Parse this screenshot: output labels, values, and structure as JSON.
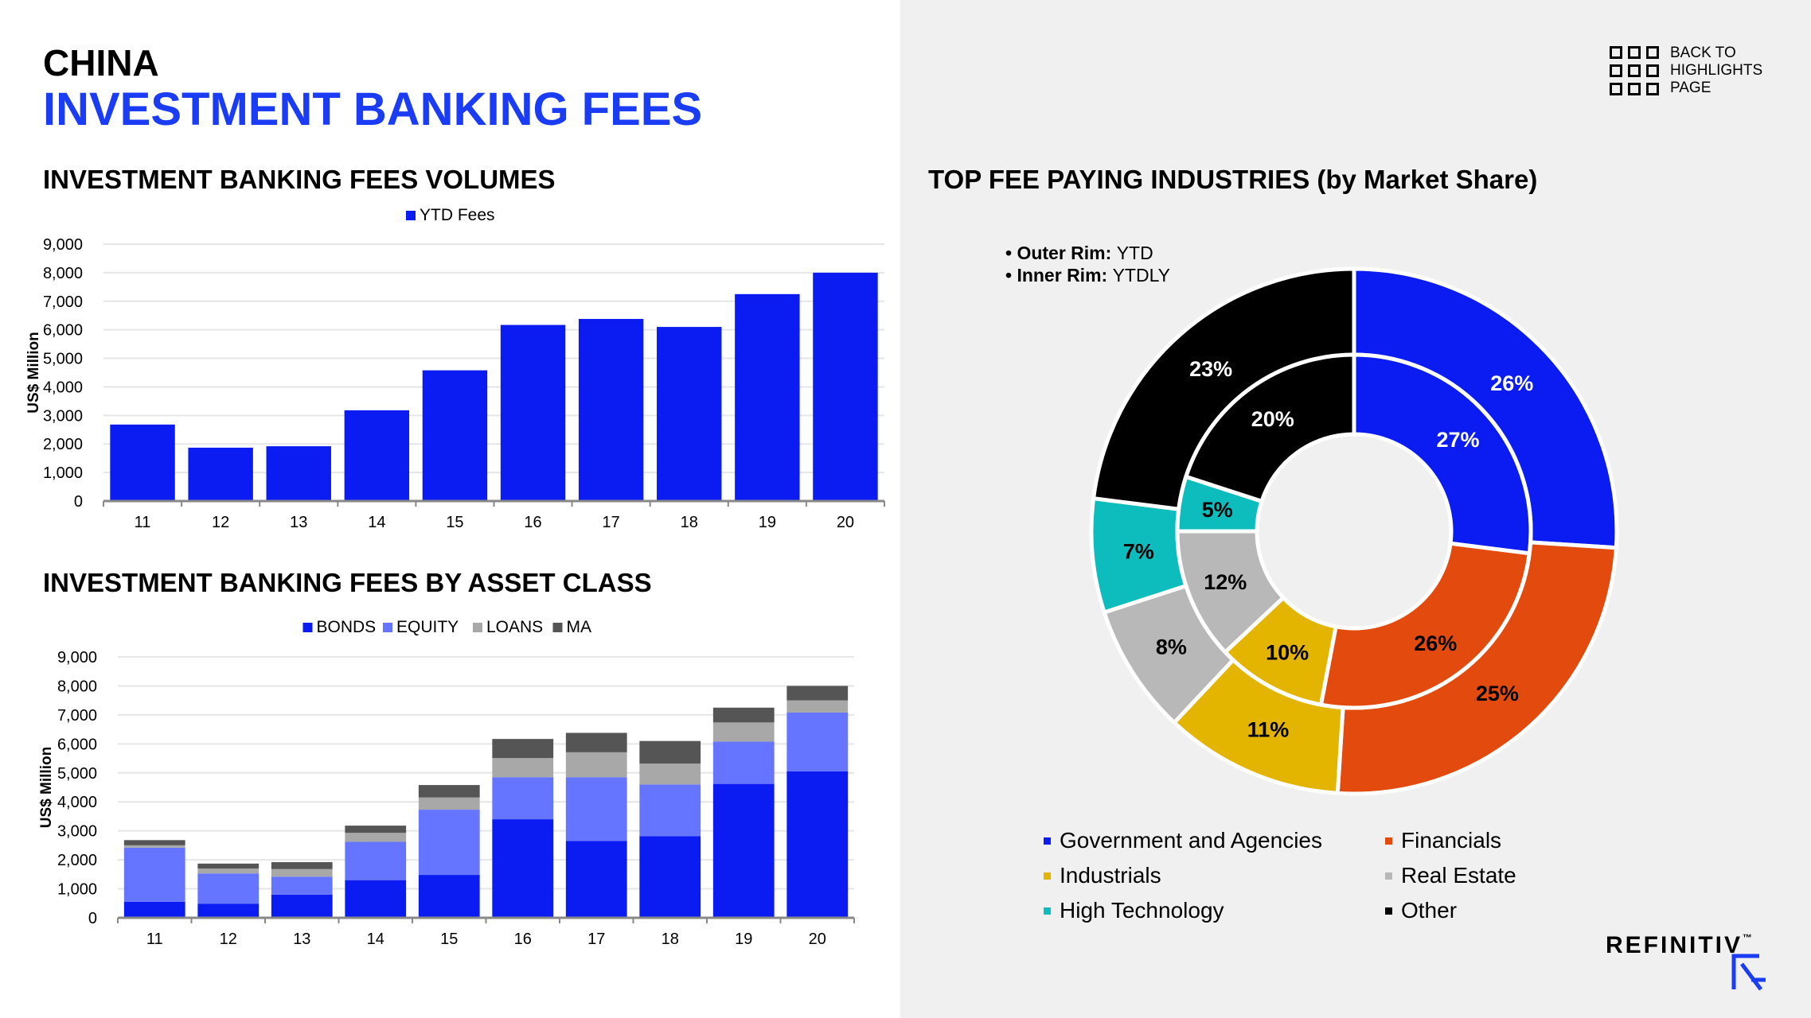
{
  "header": {
    "title_line1": "CHINA",
    "title_line2": "INVESTMENT BANKING FEES"
  },
  "nav": {
    "back_line1": "BACK TO",
    "back_line2": "HIGHLIGHTS",
    "back_line3": "PAGE",
    "icon": "grid-icon"
  },
  "brand": {
    "logo_text": "REFINITIV",
    "trademark": "™"
  },
  "sections": {
    "volumes_title": "INVESTMENT BANKING FEES VOLUMES",
    "asset_class_title": "INVESTMENT BANKING FEES BY ASSET CLASS",
    "industries_title": "TOP FEE PAYING INDUSTRIES (by Market Share)"
  },
  "colors": {
    "accent_blue": "#1a3cf5",
    "bonds": "#0a1cf2",
    "equity": "#6675ff",
    "loans": "#a8a8a8",
    "ma": "#555555",
    "government": "#0a1cf2",
    "financials": "#e24a0e",
    "industrials": "#e3b400",
    "real_estate": "#b8b8b8",
    "high_technology": "#0dbcbc",
    "other": "#000000"
  },
  "chart_data": [
    {
      "type": "bar",
      "categories": [
        "11",
        "12",
        "13",
        "14",
        "15",
        "16",
        "17",
        "18",
        "19",
        "20"
      ],
      "series": [
        {
          "name": "YTD Fees",
          "values": [
            2680,
            1870,
            1920,
            3180,
            4580,
            6170,
            6380,
            6100,
            7250,
            8000
          ]
        }
      ],
      "title": "INVESTMENT BANKING FEES VOLUMES",
      "xlabel": "",
      "ylabel": "US$ Million",
      "ylim": [
        0,
        9000
      ],
      "yticks": [
        "0",
        "1,000",
        "2,000",
        "3,000",
        "4,000",
        "5,000",
        "6,000",
        "7,000",
        "8,000",
        "9,000"
      ],
      "grid": true,
      "legend": "top-center"
    },
    {
      "type": "bar",
      "stacked": true,
      "categories": [
        "11",
        "12",
        "13",
        "14",
        "15",
        "16",
        "17",
        "18",
        "19",
        "20"
      ],
      "series": [
        {
          "name": "BONDS",
          "values": [
            550,
            480,
            800,
            1300,
            1480,
            3400,
            2650,
            2820,
            4620,
            5050
          ]
        },
        {
          "name": "EQUITY",
          "values": [
            1870,
            1050,
            620,
            1320,
            2250,
            1450,
            2200,
            1780,
            1460,
            2030
          ]
        },
        {
          "name": "LOANS",
          "values": [
            80,
            170,
            260,
            310,
            420,
            660,
            860,
            720,
            660,
            420
          ]
        },
        {
          "name": "MA",
          "values": [
            180,
            170,
            240,
            250,
            430,
            660,
            670,
            780,
            510,
            500
          ]
        }
      ],
      "title": "INVESTMENT BANKING FEES BY ASSET CLASS",
      "xlabel": "",
      "ylabel": "US$ Million",
      "ylim": [
        0,
        9000
      ],
      "yticks": [
        "0",
        "1,000",
        "2,000",
        "3,000",
        "4,000",
        "5,000",
        "6,000",
        "7,000",
        "8,000",
        "9,000"
      ],
      "grid": true,
      "legend": "top-center"
    },
    {
      "type": "pie",
      "donut": true,
      "title": "TOP FEE PAYING INDUSTRIES (by Market Share)",
      "rim_notes": [
        {
          "label": "Outer Rim:",
          "value": "YTD"
        },
        {
          "label": "Inner Rim:",
          "value": "YTDLY"
        }
      ],
      "categories": [
        "Government and Agencies",
        "Financials",
        "Industrials",
        "Real Estate",
        "High Technology",
        "Other"
      ],
      "outer": {
        "name": "YTD",
        "values": [
          26,
          25,
          11,
          8,
          7,
          23
        ],
        "labels": [
          "26%",
          "25%",
          "11%",
          "8%",
          "7%",
          "23%"
        ]
      },
      "inner": {
        "name": "YTDLY",
        "values": [
          27,
          26,
          10,
          12,
          5,
          20
        ],
        "labels": [
          "27%",
          "26%",
          "10%",
          "12%",
          "5%",
          "20%"
        ]
      },
      "legend": "bottom"
    }
  ]
}
